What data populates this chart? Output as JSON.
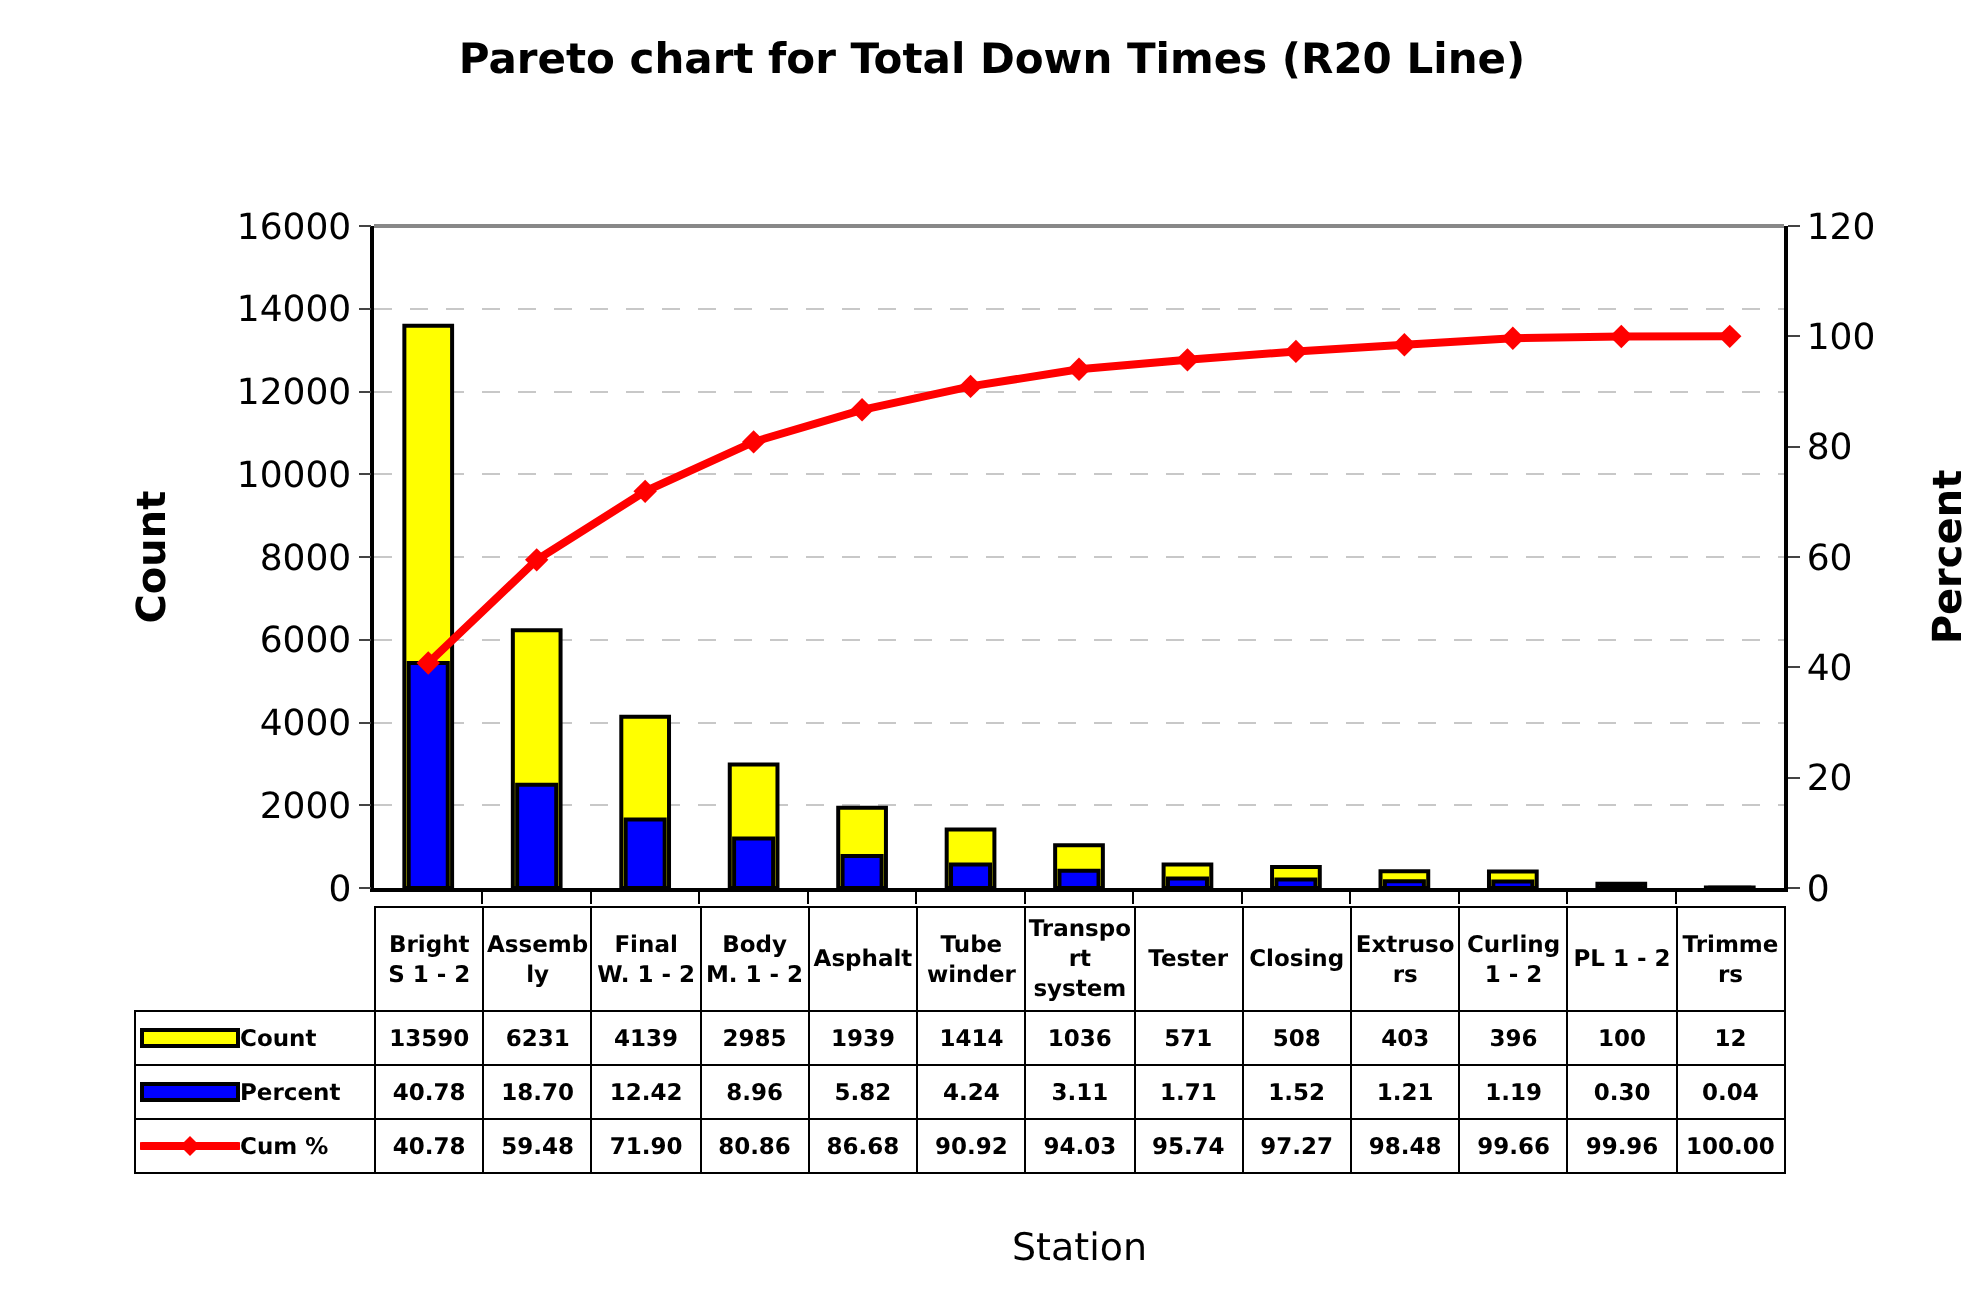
{
  "chart_data": {
    "type": "bar",
    "title": "Pareto chart for Total Down Times (R20 Line)",
    "annotations": [
      "Station"
    ],
    "ylabel": "Count",
    "y2label": "Percent",
    "categories": [
      "Bright S 1 - 2",
      "Assembly",
      "Final W. 1 - 2",
      "Body M. 1 - 2",
      "Asphalt",
      "Tube winder",
      "Transport system",
      "Tester",
      "Closing",
      "Extrusors",
      "Curling 1 - 2",
      "PL 1 - 2",
      "Trimmers"
    ],
    "series": [
      {
        "name": "Count",
        "color": "#ffff00",
        "values": [
          13590,
          6231,
          4139,
          2985,
          1939,
          1414,
          1036,
          571,
          508,
          403,
          396,
          100,
          12
        ],
        "value_labels": [
          "13590",
          "6231",
          "4139",
          "2985",
          "1939",
          "1414",
          "1036",
          "571",
          "508",
          "403",
          "396",
          "100",
          "12"
        ]
      },
      {
        "name": "Percent",
        "color": "#0000ff",
        "axis": "y2",
        "values": [
          40.78,
          18.7,
          12.42,
          8.96,
          5.82,
          4.24,
          3.11,
          1.71,
          1.52,
          1.21,
          1.19,
          0.3,
          0.04
        ],
        "value_labels": [
          "40.78",
          "18.70",
          "12.42",
          "8.96",
          "5.82",
          "4.24",
          "3.11",
          "1.71",
          "1.52",
          "1.21",
          "1.19",
          "0.30",
          "0.04"
        ]
      },
      {
        "name": "Cum %",
        "type": "line",
        "color": "#ff0000",
        "axis": "y2",
        "values": [
          40.78,
          59.48,
          71.9,
          80.86,
          86.68,
          90.92,
          94.03,
          95.74,
          97.27,
          98.48,
          99.66,
          99.96,
          100.0
        ],
        "value_labels": [
          "40.78",
          "59.48",
          "71.90",
          "80.86",
          "86.68",
          "90.92",
          "94.03",
          "95.74",
          "97.27",
          "98.48",
          "99.66",
          "99.96",
          "100.00"
        ]
      }
    ],
    "ylim": [
      0,
      16000
    ],
    "yticks": [
      0,
      2000,
      4000,
      6000,
      8000,
      10000,
      12000,
      14000,
      16000
    ],
    "y2lim": [
      0,
      120
    ],
    "y2ticks": [
      0,
      20,
      40,
      60,
      80,
      100,
      120
    ],
    "grid": "y",
    "legend": "bottom left",
    "marker": "diamond",
    "line_style": "solid"
  }
}
